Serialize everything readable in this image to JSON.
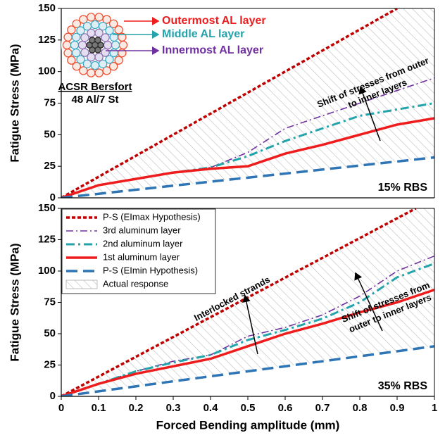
{
  "chart_data": [
    {
      "type": "line",
      "label": "15% RBS",
      "ylabel": "Fatigue Stress (MPa)",
      "xlim": [
        0,
        1
      ],
      "ylim": [
        0,
        150
      ],
      "yticks": [
        0,
        25,
        50,
        75,
        100,
        125,
        150
      ],
      "hatch_between": [
        0,
        4
      ],
      "series": [
        {
          "color": "#c00000",
          "dash": "dotted",
          "x": [
            0,
            0.9
          ],
          "values": [
            0,
            150
          ]
        },
        {
          "color": "#7030a0",
          "dash": "dashdot",
          "x": [
            0,
            0.1,
            0.2,
            0.3,
            0.4,
            0.5,
            0.6,
            0.7,
            0.8,
            0.9,
            1
          ],
          "values": [
            0,
            10,
            15,
            20,
            24,
            36,
            55,
            65,
            75,
            85,
            95
          ]
        },
        {
          "color": "#23a3aa",
          "dash": "dashdot-thick",
          "x": [
            0,
            0.1,
            0.2,
            0.3,
            0.4,
            0.5,
            0.6,
            0.7,
            0.8,
            0.9,
            1
          ],
          "values": [
            0,
            10,
            15,
            20,
            24,
            33,
            45,
            55,
            65,
            70,
            75
          ]
        },
        {
          "color": "#ee1c1c",
          "dash": "solid",
          "x": [
            0,
            0.1,
            0.2,
            0.3,
            0.4,
            0.5,
            0.6,
            0.7,
            0.8,
            0.9,
            1
          ],
          "values": [
            0,
            10,
            15,
            20,
            23,
            25,
            35,
            42,
            50,
            58,
            63
          ]
        },
        {
          "color": "#2e75b6",
          "dash": "dashed",
          "x": [
            0,
            1
          ],
          "values": [
            0,
            32
          ]
        }
      ],
      "inset": {
        "labels": [
          "Outermost AL layer",
          "Middle AL layer",
          "Innermost AL layer"
        ],
        "caption": [
          "ACSR Bersfort",
          "48 Al/7 St"
        ]
      },
      "annotations": [
        [
          "Shift of stresses from outer",
          "to inner layers"
        ]
      ]
    },
    {
      "type": "line",
      "label": "35% RBS",
      "ylabel": "Fatigue Stress (MPa)",
      "xlabel": "Forced Bending amplitude (mm)",
      "xlim": [
        0,
        1
      ],
      "ylim": [
        0,
        150
      ],
      "yticks": [
        0,
        25,
        50,
        75,
        100,
        125,
        150
      ],
      "xticks": [
        0,
        0.1,
        0.2,
        0.3,
        0.4,
        0.5,
        0.6,
        0.7,
        0.8,
        0.9,
        1
      ],
      "hatch_between": [
        0,
        4
      ],
      "hatch_name": "Actual response",
      "series": [
        {
          "name": "P-S (EImax Hypothesis)",
          "color": "#c00000",
          "dash": "dotted",
          "x": [
            0,
            0.95
          ],
          "values": [
            0,
            150
          ]
        },
        {
          "name": "3rd aluminum layer",
          "color": "#7030a0",
          "dash": "dashdot",
          "x": [
            0,
            0.1,
            0.2,
            0.3,
            0.4,
            0.5,
            0.6,
            0.7,
            0.8,
            0.9,
            1
          ],
          "values": [
            0,
            10,
            20,
            28,
            33,
            48,
            55,
            65,
            80,
            100,
            112
          ]
        },
        {
          "name": "2nd aluminum layer",
          "color": "#23a3aa",
          "dash": "dashdot-thick",
          "x": [
            0,
            0.1,
            0.2,
            0.3,
            0.4,
            0.5,
            0.6,
            0.7,
            0.8,
            0.9,
            1
          ],
          "values": [
            0,
            10,
            20,
            27,
            33,
            45,
            53,
            62,
            75,
            95,
            106
          ]
        },
        {
          "name": "1st aluminum layer",
          "color": "#ee1c1c",
          "dash": "solid",
          "x": [
            0,
            0.1,
            0.2,
            0.3,
            0.4,
            0.5,
            0.6,
            0.7,
            0.8,
            0.9,
            1
          ],
          "values": [
            0,
            10,
            18,
            24,
            30,
            40,
            50,
            58,
            67,
            75,
            85
          ]
        },
        {
          "name": "P-S (EImin Hypothesis)",
          "color": "#2e75b6",
          "dash": "dashed",
          "x": [
            0,
            1
          ],
          "values": [
            0,
            40
          ]
        }
      ],
      "annotations": [
        [
          "Interlocked strands"
        ],
        [
          "Shift of stresses from",
          "outer to inner layers"
        ]
      ]
    }
  ]
}
